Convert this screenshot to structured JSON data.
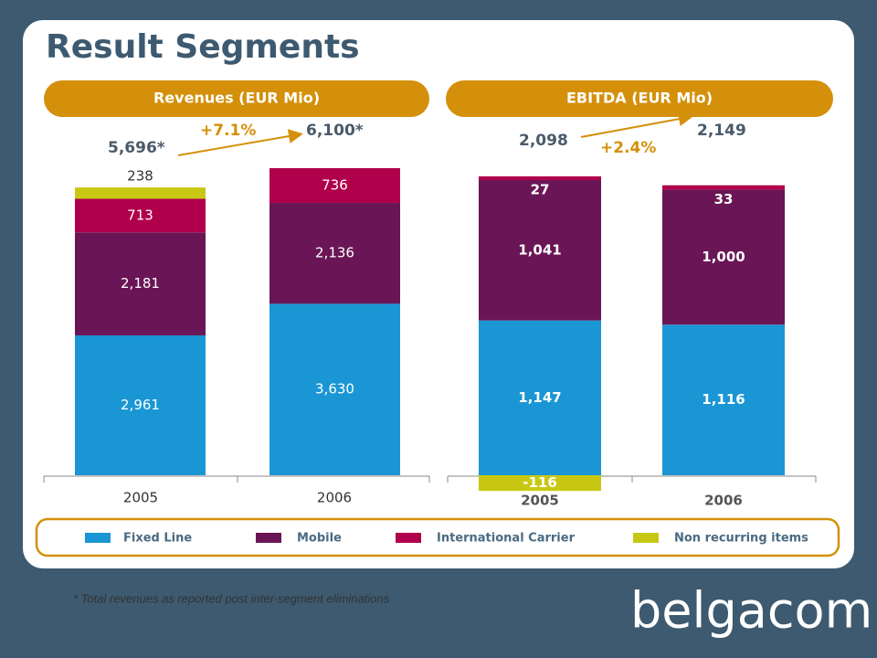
{
  "title": "Result Segments",
  "chart_data": [
    {
      "type": "stacked-bar",
      "title": "Revenues (EUR Mio)",
      "categories": [
        "2005",
        "2006"
      ],
      "series": [
        {
          "name": "Fixed Line",
          "color": "#1a96d4",
          "values": [
            2961,
            3630
          ],
          "value_labels": [
            "2,961",
            "3,630"
          ]
        },
        {
          "name": "Mobile",
          "color": "#6a1656",
          "values": [
            2181,
            2136
          ],
          "value_labels": [
            "2,181",
            "2,136"
          ]
        },
        {
          "name": "International Carrier",
          "color": "#b0004b",
          "values": [
            713,
            736
          ],
          "value_labels": [
            "713",
            "736"
          ]
        },
        {
          "name": "Non recurring items",
          "color": "#c8c814",
          "values": [
            238,
            null
          ],
          "value_labels": [
            "238",
            null
          ]
        }
      ],
      "annotations": [
        "5,696*",
        "+7.1%",
        "6,100*"
      ]
    },
    {
      "type": "stacked-bar",
      "title": "EBITDA (EUR Mio)",
      "categories": [
        "2005",
        "2006"
      ],
      "series": [
        {
          "values": [
            1147,
            1116
          ],
          "value_labels": [
            "1,147",
            "1,116"
          ]
        },
        {
          "values": [
            1041,
            1000
          ],
          "value_labels": [
            "1,041",
            "1,000"
          ]
        },
        {
          "values": [
            27,
            33
          ],
          "value_labels": [
            "27",
            "33"
          ]
        },
        {
          "values": [
            -116,
            null
          ],
          "value_labels": [
            "-116",
            null
          ]
        }
      ],
      "annotations": [
        "2,098",
        "+2.4%",
        "2,149"
      ]
    }
  ],
  "footnote": "* Total revenues as reported post inter-segment eliminations",
  "logo": "belgacom"
}
